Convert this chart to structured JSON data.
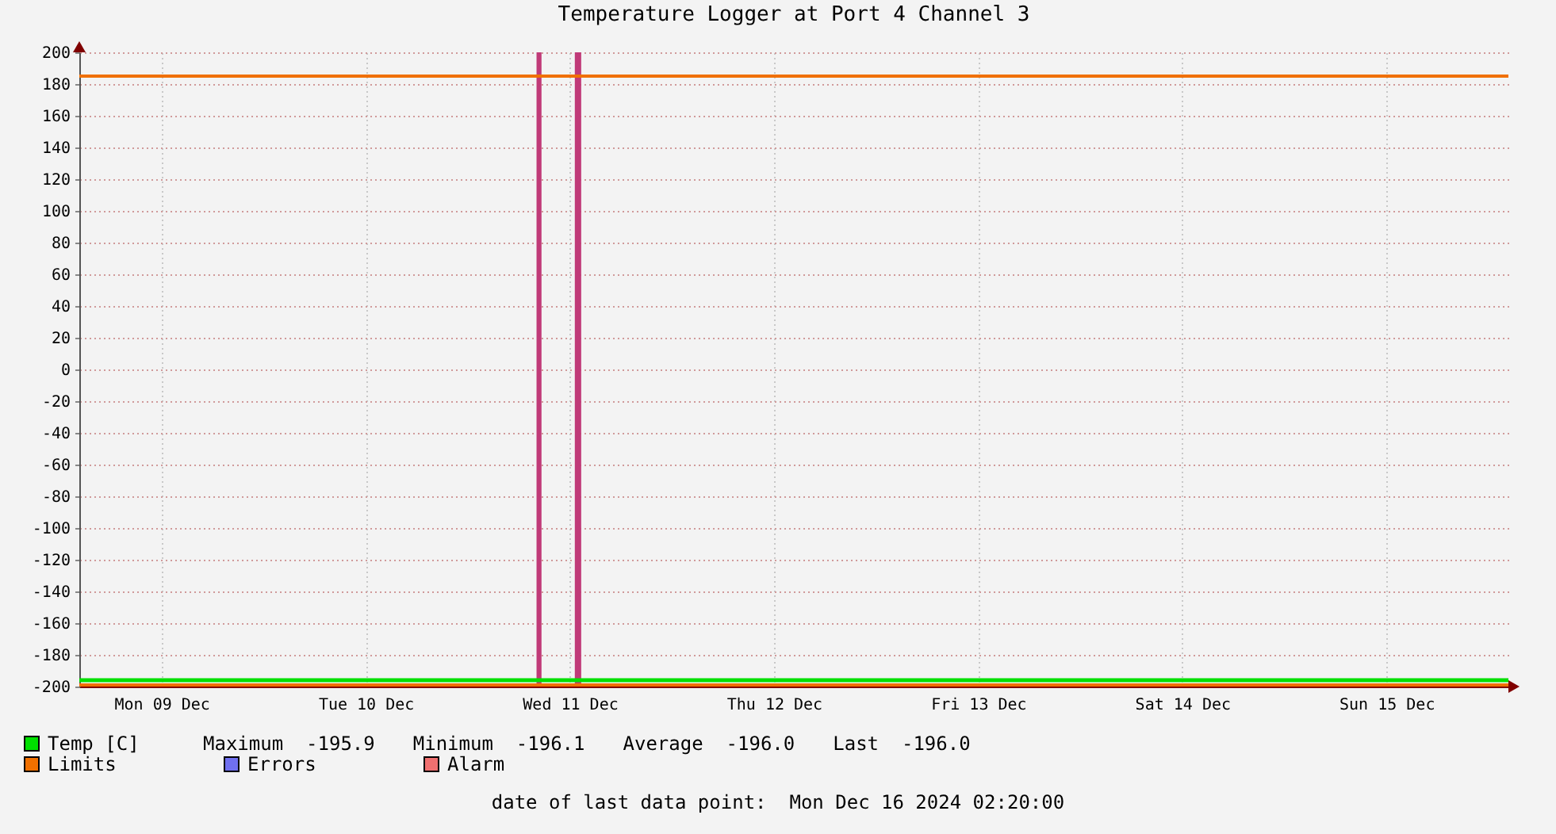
{
  "chart_data": {
    "type": "line",
    "title": "Temperature Logger at Port 4 Channel 3",
    "xlim": [
      "2024-12-09T02:20",
      "2024-12-16T02:20"
    ],
    "xticks": [
      {
        "value": "2024-12-09T12:00",
        "label": "Mon 09 Dec"
      },
      {
        "value": "2024-12-10T12:00",
        "label": "Tue 10 Dec"
      },
      {
        "value": "2024-12-11T12:00",
        "label": "Wed 11 Dec"
      },
      {
        "value": "2024-12-12T12:00",
        "label": "Thu 12 Dec"
      },
      {
        "value": "2024-12-13T12:00",
        "label": "Fri 13 Dec"
      },
      {
        "value": "2024-12-14T12:00",
        "label": "Sat 14 Dec"
      },
      {
        "value": "2024-12-15T12:00",
        "label": "Sun 15 Dec"
      }
    ],
    "ylim": [
      -200,
      200
    ],
    "yticks": [
      -200,
      -180,
      -160,
      -140,
      -120,
      -100,
      -80,
      -60,
      -40,
      -20,
      0,
      20,
      40,
      60,
      80,
      100,
      120,
      140,
      160,
      180,
      200
    ],
    "series": [
      {
        "name": "Temp [C]",
        "color": "#00e000",
        "x": [
          "2024-12-09T02:20",
          "2024-12-10T00:00",
          "2024-12-11T00:00",
          "2024-12-12T00:00",
          "2024-12-13T00:00",
          "2024-12-14T00:00",
          "2024-12-15T00:00",
          "2024-12-16T02:20"
        ],
        "values": [
          -196,
          -196,
          -196,
          -196,
          -196,
          -196,
          -196,
          -196
        ]
      },
      {
        "name": "Limits",
        "color": "#f07000"
      },
      {
        "name": "Errors",
        "color": "#7070f0"
      },
      {
        "name": "Alarm",
        "color": "#f07070"
      }
    ],
    "ref_lines": [
      {
        "axis": "y",
        "value": 185,
        "color": "#f07000"
      },
      {
        "axis": "y",
        "value": -199,
        "color": "#f07000"
      }
    ],
    "bands": [
      {
        "axis": "x",
        "from": "2024-12-11T08:05",
        "to": "2024-12-11T08:40",
        "color": "#c03a78"
      },
      {
        "axis": "x",
        "from": "2024-12-11T12:35",
        "to": "2024-12-11T13:20",
        "color": "#c03a78"
      }
    ],
    "annotations": [
      "Maximum  -195.9",
      "Minimum  -196.1",
      "Average  -196.0",
      "Last  -196.0",
      "date of last data point:  Mon Dec 16 2024 02:20:00"
    ],
    "grid": true,
    "legend": "bottom",
    "line_style": "solid"
  }
}
